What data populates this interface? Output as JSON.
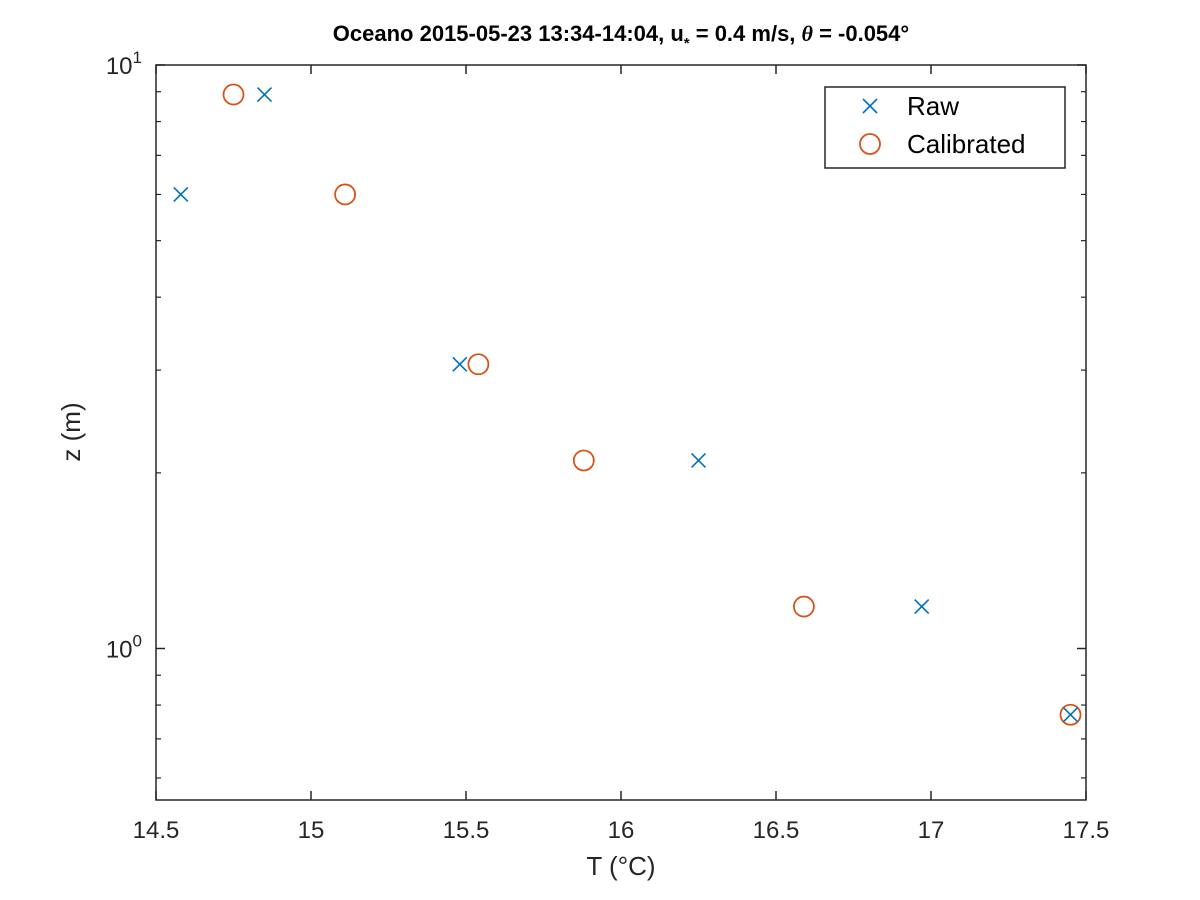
{
  "chart_data": {
    "type": "scatter",
    "title_parts": {
      "prefix": "Oceano 2015-05-23 13:34-14:04, u",
      "subscript": "*",
      "middle": " = 0.4 m/s, ",
      "theta": "θ",
      "suffix": " = -0.054°"
    },
    "xlabel": "T (°C)",
    "ylabel": "z (m)",
    "xlim": [
      14.5,
      17.5
    ],
    "ylim": [
      0.55,
      10
    ],
    "yscale": "log",
    "grid": false,
    "legend_placement": "top-right",
    "x_ticks": [
      {
        "value": 14.5,
        "label": "14.5"
      },
      {
        "value": 15,
        "label": "15"
      },
      {
        "value": 15.5,
        "label": "15.5"
      },
      {
        "value": 16,
        "label": "16"
      },
      {
        "value": 16.5,
        "label": "16.5"
      },
      {
        "value": 17,
        "label": "17"
      },
      {
        "value": 17.5,
        "label": "17.5"
      }
    ],
    "y_major_ticks": [
      {
        "value": 1,
        "base": "10",
        "exp": "0"
      },
      {
        "value": 10,
        "base": "10",
        "exp": "1"
      }
    ],
    "y_minor_ticks": [
      0.6,
      0.7,
      0.8,
      0.9,
      2,
      3,
      4,
      5,
      6,
      7,
      8,
      9
    ],
    "series": [
      {
        "name": "Raw",
        "marker": "x",
        "color": "#0072BD",
        "x": [
          14.58,
          14.85,
          15.48,
          16.25,
          16.97,
          17.45
        ],
        "y": [
          6.0,
          8.9,
          3.07,
          2.1,
          1.18,
          0.77
        ]
      },
      {
        "name": "Calibrated",
        "marker": "o",
        "color": "#D95319",
        "x": [
          14.75,
          15.11,
          15.54,
          15.88,
          16.59,
          17.45
        ],
        "y": [
          8.9,
          6.0,
          3.07,
          2.1,
          1.18,
          0.77
        ]
      }
    ]
  }
}
